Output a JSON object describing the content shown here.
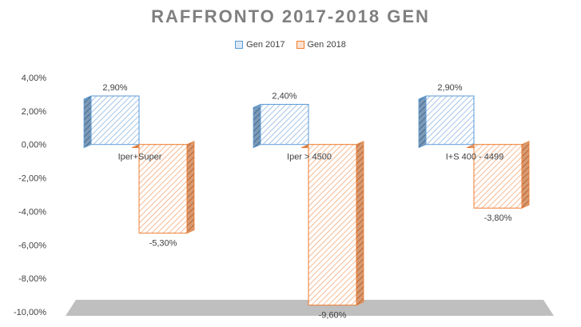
{
  "chart_data": {
    "type": "bar",
    "title": "RAFFRONTO 2017-2018 GEN",
    "categories": [
      "Iper+Super",
      "Iper > 4500",
      "I+S 400 - 4499"
    ],
    "series": [
      {
        "name": "Gen 2017",
        "values": [
          2.9,
          2.4,
          2.9
        ],
        "labels": [
          "2,90%",
          "2,40%",
          "2,90%"
        ],
        "color": "#5b9bd5"
      },
      {
        "name": "Gen 2018",
        "values": [
          -5.3,
          -9.6,
          -3.8
        ],
        "labels": [
          "-5,30%",
          "-9,60%",
          "-3,80%"
        ],
        "color": "#ed7d31"
      }
    ],
    "ylim": [
      -10,
      4
    ],
    "yticks": [
      "4,00%",
      "2,00%",
      "0,00%",
      "-2,00%",
      "-4,00%",
      "-6,00%",
      "-8,00%",
      "-10,00%"
    ],
    "ytick_values": [
      4,
      2,
      0,
      -2,
      -4,
      -6,
      -8,
      -10
    ],
    "legend_position": "top",
    "style": "3d-hatched-columns",
    "floor_color": "#bfbfbf"
  }
}
